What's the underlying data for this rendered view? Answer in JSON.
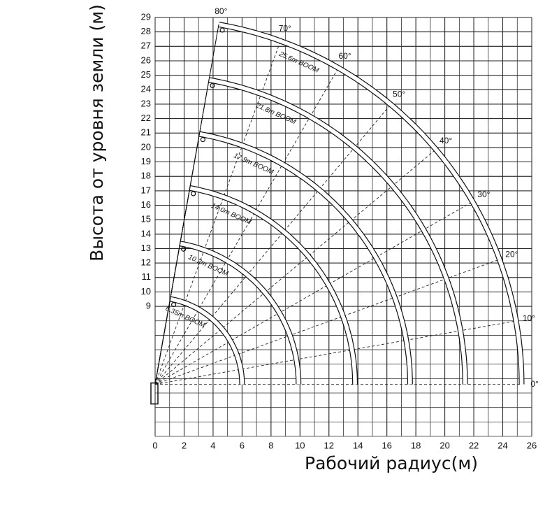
{
  "chart_data": {
    "type": "range",
    "x_label": "Рабочий радиус(м)",
    "y_label": "Высота от уровня земли (м)",
    "xlim": [
      0,
      26
    ],
    "xticks": [
      0,
      2,
      4,
      6,
      8,
      10,
      12,
      14,
      16,
      18,
      20,
      22,
      24,
      26
    ],
    "ylim": [
      0,
      29
    ],
    "yticks": [
      9,
      10,
      11,
      12,
      13,
      14,
      15,
      16,
      17,
      18,
      19,
      20,
      21,
      22,
      23,
      24,
      25,
      26,
      27,
      28,
      29
    ],
    "grid": true,
    "pivot": [
      0,
      3.6
    ],
    "booms": [
      {
        "name": "6.35m BOOM",
        "radius": 6.0
      },
      {
        "name": "10.2m BOOM",
        "radius": 9.9
      },
      {
        "name": "14.0m BOOM",
        "radius": 13.8
      },
      {
        "name": "17.9m BOOM",
        "radius": 17.6
      },
      {
        "name": "21.8m BOOM",
        "radius": 21.4
      },
      {
        "name": "25.6m BOOM",
        "radius": 25.3
      }
    ],
    "angles": [
      {
        "value": 0,
        "label": "0°"
      },
      {
        "value": 10,
        "label": "10°"
      },
      {
        "value": 20,
        "label": "20°"
      },
      {
        "value": 30,
        "label": "30°"
      },
      {
        "value": 40,
        "label": "40°"
      },
      {
        "value": 50,
        "label": "50°"
      },
      {
        "value": 60,
        "label": "60°"
      },
      {
        "value": 70,
        "label": "70°"
      },
      {
        "value": 80,
        "label": "80°"
      }
    ]
  }
}
